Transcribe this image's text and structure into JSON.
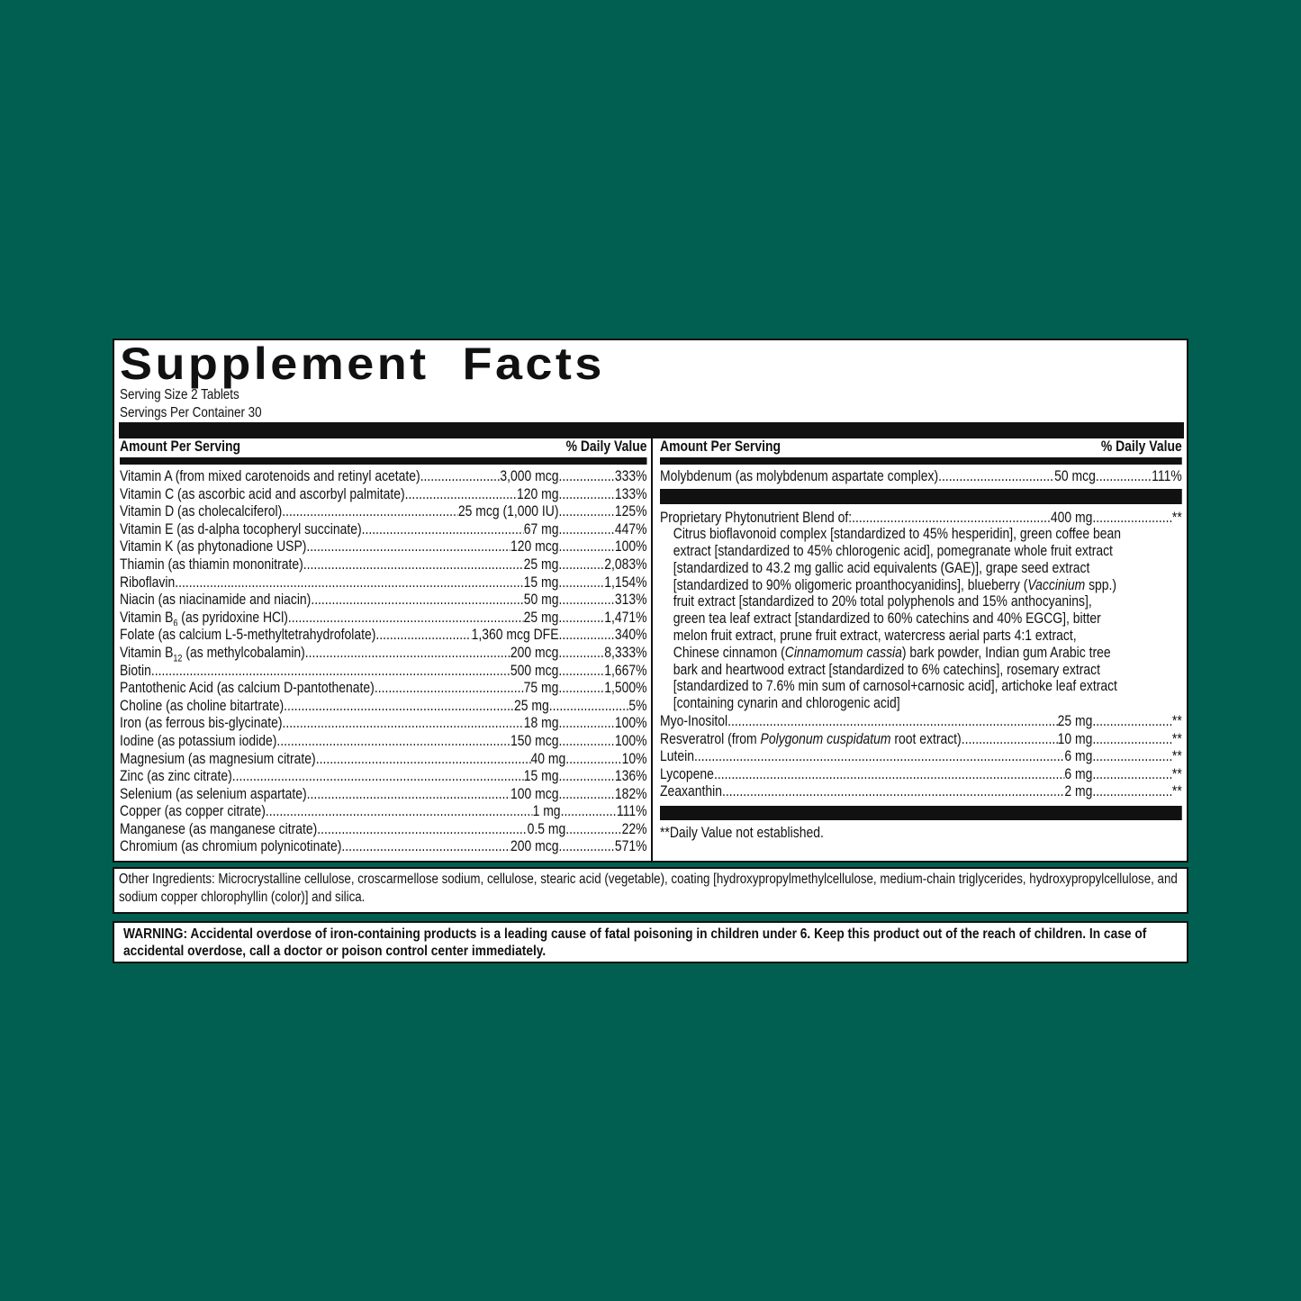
{
  "title": "Supplement  Facts",
  "serving_size": "Serving Size 2 Tablets",
  "servings_per_container": "Servings Per Container 30",
  "header": {
    "amount": "Amount Per Serving",
    "dv": "% Daily Value"
  },
  "left_rows": [
    {
      "name": "Vitamin A (from mixed carotenoids and retinyl acetate)",
      "amount": "3,000 mcg",
      "dv": "333%"
    },
    {
      "name": "Vitamin C (as ascorbic acid and ascorbyl palmitate)",
      "amount": "120 mg",
      "dv": "133%"
    },
    {
      "name": "Vitamin D (as cholecalciferol)",
      "amount": "25 mcg (1,000 IU)",
      "dv": "125%"
    },
    {
      "name": "Vitamin E (as d-alpha tocopheryl succinate)",
      "amount": "67 mg",
      "dv": "447%"
    },
    {
      "name": "Vitamin K (as phytonadione USP)",
      "amount": "120 mcg",
      "dv": "100%"
    },
    {
      "name": "Thiamin (as thiamin mononitrate)",
      "amount": "25 mg",
      "dv": "2,083%"
    },
    {
      "name": "Riboflavin",
      "amount": "15 mg",
      "dv": "1,154%"
    },
    {
      "name": "Niacin (as niacinamide and niacin)",
      "amount": "50 mg",
      "dv": "313%"
    },
    {
      "name": "Vitamin B",
      "sub": "6",
      "name_post": " (as pyridoxine HCl)",
      "amount": "25 mg",
      "dv": "1,471%"
    },
    {
      "name": "Folate (as calcium L-5-methyltetrahydrofolate)",
      "amount": "1,360 mcg DFE",
      "dv": "340%"
    },
    {
      "name": "Vitamin B",
      "sub": "12",
      "name_post": " (as methylcobalamin)",
      "amount": "200 mcg",
      "dv": "8,333%"
    },
    {
      "name": "Biotin",
      "amount": "500 mcg",
      "dv": "1,667%"
    },
    {
      "name": "Pantothenic Acid (as calcium D-pantothenate)",
      "amount": "75 mg",
      "dv": "1,500%"
    },
    {
      "name": "Choline (as choline bitartrate)",
      "amount": "25 mg",
      "dv": "5%"
    },
    {
      "name": "Iron (as ferrous bis-glycinate)",
      "amount": "18 mg",
      "dv": "100%"
    },
    {
      "name": "Iodine (as potassium iodide)",
      "amount": "150 mcg",
      "dv": "100%"
    },
    {
      "name": "Magnesium (as magnesium citrate)",
      "amount": "40 mg",
      "dv": "10%"
    },
    {
      "name": "Zinc (as zinc citrate)",
      "amount": "15 mg",
      "dv": "136%"
    },
    {
      "name": "Selenium (as selenium aspartate)",
      "amount": "100 mcg",
      "dv": "182%"
    },
    {
      "name": "Copper (as copper citrate)",
      "amount": "1 mg",
      "dv": "111%"
    },
    {
      "name": "Manganese (as manganese citrate)",
      "amount": "0.5 mg",
      "dv": "22%"
    },
    {
      "name": "Chromium (as chromium polynicotinate)",
      "amount": "200 mcg",
      "dv": "571%"
    }
  ],
  "molybdenum": {
    "name": "Molybdenum (as molybdenum aspartate complex)",
    "amount": "50 mcg",
    "dv": "111%"
  },
  "blend": {
    "name": "Proprietary Phytonutrient Blend of:",
    "amount": "400 mg",
    "dv": "**",
    "lines": [
      [
        {
          "t": "Citrus bioflavonoid complex [standardized to 45% hesperidin], green coffee bean"
        }
      ],
      [
        {
          "t": "extract [standardized to 45% chlorogenic acid], pomegranate whole fruit extract"
        }
      ],
      [
        {
          "t": "[standardized to 43.2 mg gallic acid equivalents (GAE)], grape seed extract"
        }
      ],
      [
        {
          "t": "[standardized to 90% oligomeric proanthocyanidins], blueberry ("
        },
        {
          "t": "Vaccinium",
          "i": true
        },
        {
          "t": " spp.)"
        }
      ],
      [
        {
          "t": "fruit extract [standardized to 20% total polyphenols and 15% anthocyanins],"
        }
      ],
      [
        {
          "t": "green tea leaf extract [standardized to 60% catechins and 40% EGCG], bitter"
        }
      ],
      [
        {
          "t": "melon fruit extract, prune fruit extract, watercress aerial parts 4:1 extract,"
        }
      ],
      [
        {
          "t": "Chinese cinnamon ("
        },
        {
          "t": "Cinnamomum cassia",
          "i": true
        },
        {
          "t": ") bark powder, Indian gum Arabic tree"
        }
      ],
      [
        {
          "t": "bark and heartwood extract [standardized to 6% catechins], rosemary extract"
        }
      ],
      [
        {
          "t": "[standardized to 7.6% min sum of carnosol+carnosic acid], artichoke leaf extract"
        }
      ],
      [
        {
          "t": "[containing cynarin and chlorogenic acid]"
        }
      ]
    ]
  },
  "right_rows": [
    {
      "name": "Myo-Inositol",
      "amount": "25 mg",
      "dv": "**"
    },
    {
      "name": "Resveratrol (from ",
      "name_italic": "Polygonum cuspidatum",
      "name_post": " root extract)",
      "amount": "10 mg",
      "dv": "**"
    },
    {
      "name": "Lutein",
      "amount": "6 mg",
      "dv": "**"
    },
    {
      "name": "Lycopene",
      "amount": "6 mg",
      "dv": "**"
    },
    {
      "name": "Zeaxanthin",
      "amount": "2 mg",
      "dv": "**"
    }
  ],
  "footnote": "**Daily Value not established.",
  "other_ingredients": "Other Ingredients: Microcrystalline cellulose, croscarmellose sodium, cellulose, stearic acid (vegetable), coating [hydroxypropylmethylcellulose, medium-chain triglycerides, hydroxypropylcellulose, and sodium copper chlorophyllin (color)] and silica.",
  "warning": "WARNING: Accidental overdose of iron-containing products is a leading cause of fatal poisoning in children under 6. Keep this product out of the reach of children. In case of accidental overdose, call a doctor or poison control center immediately.",
  "colors": {
    "background": "#005f50",
    "panel": "#ffffff",
    "ink": "#111111"
  }
}
